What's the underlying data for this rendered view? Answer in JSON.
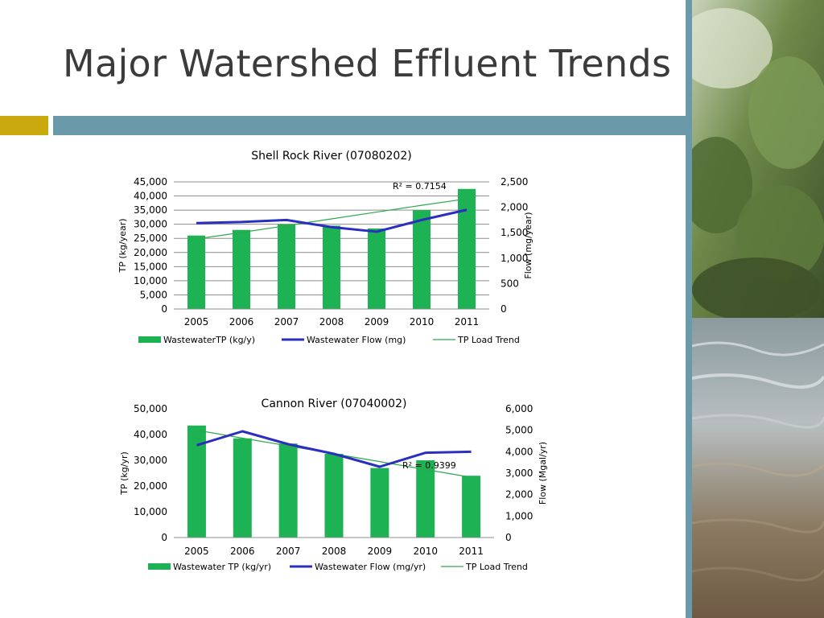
{
  "slide": {
    "title": "Major Watershed Effluent Trends"
  },
  "colors": {
    "bar": "#1db254",
    "flow_line": "#2b2fbf",
    "trend_line": "#2ea84a",
    "gold_accent": "#c9a90e",
    "teal_accent": "#6a9aa9"
  },
  "photo": {
    "label": "river-photo"
  },
  "chart_data": [
    {
      "type": "bar",
      "title": "Shell Rock River (07080202)",
      "categories": [
        "2005",
        "2006",
        "2007",
        "2008",
        "2009",
        "2010",
        "2011"
      ],
      "series": [
        {
          "name": "WastewaterTP (kg/y)",
          "kind": "bar",
          "axis": "left",
          "values": [
            26000,
            28000,
            30000,
            29500,
            28500,
            35000,
            42500
          ]
        },
        {
          "name": "Wastewater Flow (mg)",
          "kind": "line",
          "axis": "right",
          "values": [
            1690,
            1710,
            1750,
            1610,
            1520,
            1750,
            1950
          ]
        },
        {
          "name": "TP Load Trend",
          "kind": "trendline",
          "axis": "left",
          "values": [
            24800,
            27100,
            29500,
            31900,
            34300,
            36700,
            39000
          ]
        }
      ],
      "r2_label": "R² = 0.7154",
      "ylabel": "TP (kg/year)",
      "y2label": "Flow (mg/year)",
      "ylim": [
        0,
        45000
      ],
      "y2lim": [
        0,
        2500
      ],
      "yticks": [
        "0",
        "5,000",
        "10,000",
        "15,000",
        "20,000",
        "25,000",
        "30,000",
        "35,000",
        "40,000",
        "45,000"
      ],
      "y2ticks": [
        "0",
        "500",
        "1,000",
        "1,500",
        "2,000",
        "2,500"
      ],
      "grid": true,
      "legend": "bottom"
    },
    {
      "type": "bar",
      "title": "Cannon River (07040002)",
      "categories": [
        "2005",
        "2006",
        "2007",
        "2008",
        "2009",
        "2010",
        "2011"
      ],
      "series": [
        {
          "name": "Wastewater TP (kg/yr)",
          "kind": "bar",
          "axis": "left",
          "values": [
            43500,
            38500,
            36500,
            32500,
            27000,
            30000,
            24000
          ]
        },
        {
          "name": "Wastewater Flow (mg/yr)",
          "kind": "line",
          "axis": "right",
          "values": [
            4300,
            4950,
            4350,
            3900,
            3300,
            3950,
            4000
          ]
        },
        {
          "name": "TP Load Trend",
          "kind": "trendline",
          "axis": "left",
          "values": [
            41700,
            38600,
            35600,
            32500,
            29500,
            26400,
            23400
          ]
        }
      ],
      "r2_label": "R² = 0.9399",
      "ylabel": "TP (kg/yr)",
      "y2label": "Flow (Mgal/yr)",
      "ylim": [
        0,
        50000
      ],
      "y2lim": [
        0,
        6000
      ],
      "yticks": [
        "0",
        "10,000",
        "20,000",
        "30,000",
        "40,000",
        "50,000"
      ],
      "y2ticks": [
        "0",
        "1,000",
        "2,000",
        "3,000",
        "4,000",
        "5,000",
        "6,000"
      ],
      "grid": false,
      "legend": "bottom"
    }
  ]
}
